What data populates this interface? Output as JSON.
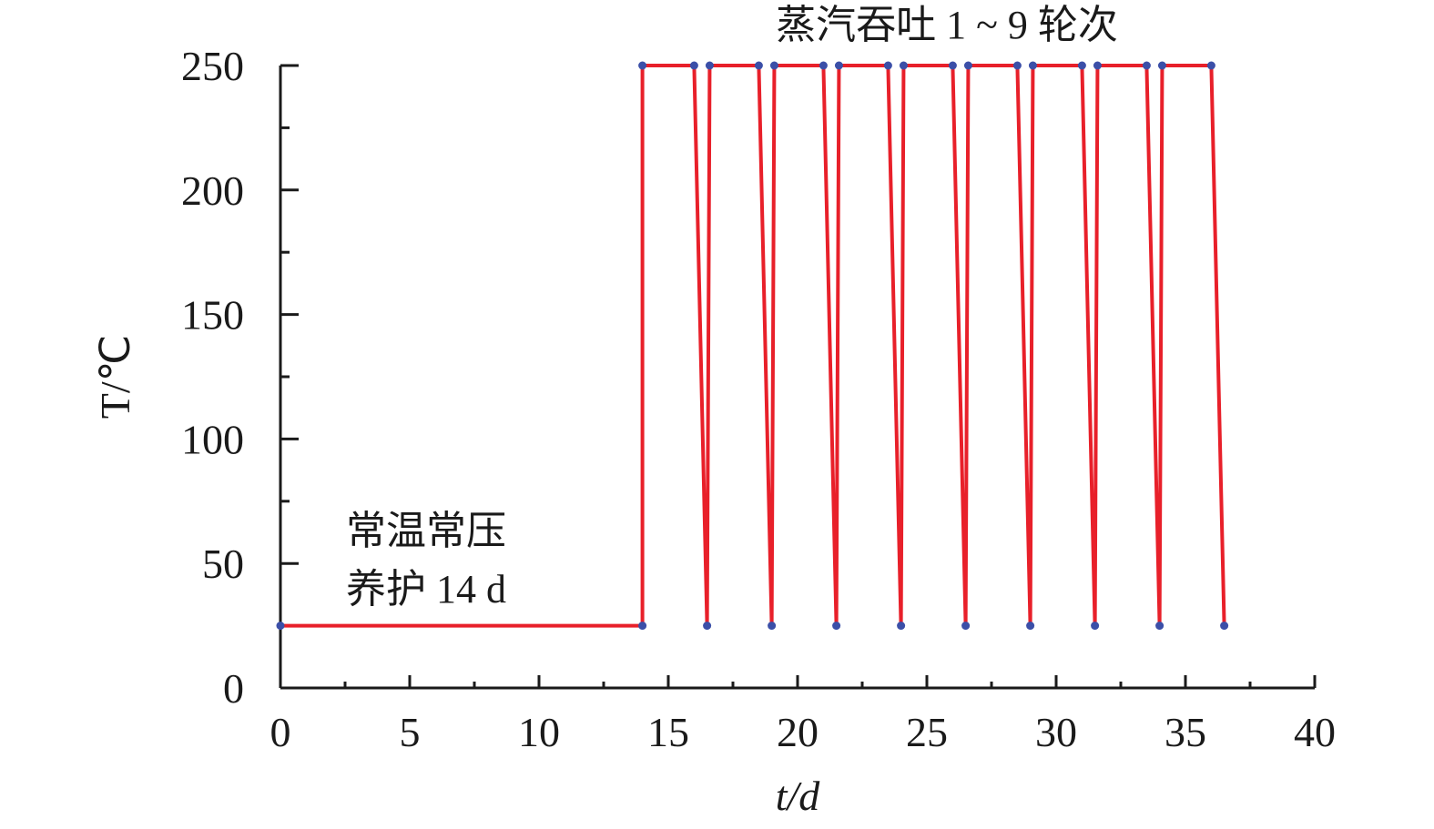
{
  "chart_data": {
    "type": "line",
    "title": "蒸汽吞吐 1 ~ 9 轮次",
    "annotations": [
      "常温常压",
      "养护 14 d"
    ],
    "xlabel": "t/d",
    "ylabel": "T/℃",
    "x": [
      0,
      14,
      14,
      16,
      16.5,
      16.6,
      18.5,
      19,
      19.1,
      21,
      21.5,
      21.6,
      23.5,
      24,
      24.1,
      26,
      26.5,
      26.6,
      28.5,
      29,
      29.1,
      31,
      31.5,
      31.6,
      33.5,
      34,
      34.1,
      36,
      36.5
    ],
    "series": [
      {
        "color": "#e8202a",
        "marker_color": "#3b4fa8",
        "values": [
          25,
          25,
          250,
          250,
          25,
          250,
          250,
          25,
          250,
          250,
          25,
          250,
          250,
          25,
          250,
          250,
          25,
          250,
          250,
          25,
          250,
          250,
          25,
          250,
          250,
          25,
          250,
          250,
          25
        ]
      }
    ],
    "xlim": [
      0,
      40
    ],
    "ylim": [
      0,
      250
    ],
    "xticks": [
      0,
      5,
      10,
      15,
      20,
      25,
      30,
      35,
      40
    ],
    "yticks": [
      0,
      50,
      100,
      150,
      200,
      250
    ],
    "xminorticks": [
      2.5,
      7.5,
      12.5,
      17.5,
      22.5,
      27.5,
      32.5,
      37.5
    ],
    "yminorticks": [
      25,
      75,
      125,
      175,
      225
    ]
  }
}
